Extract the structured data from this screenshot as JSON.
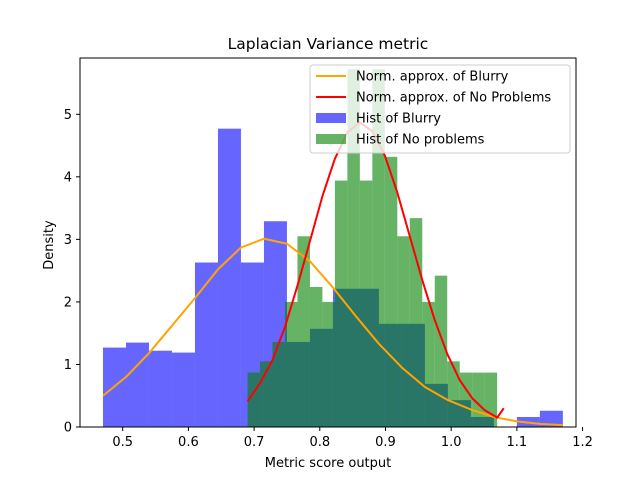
{
  "chart_data": {
    "type": "histogram",
    "title": "Laplacian Variance metric",
    "xlabel": "Metric score output",
    "ylabel": "Density",
    "xlim": [
      0.435,
      1.19
    ],
    "ylim": [
      0,
      5.9
    ],
    "xticks": [
      0.5,
      0.6,
      0.7,
      0.8,
      0.9,
      1.0,
      1.1,
      1.2
    ],
    "xtick_labels": [
      "0.5",
      "0.6",
      "0.7",
      "0.8",
      "0.9",
      "1.0",
      "1.1",
      "1.2"
    ],
    "yticks": [
      0,
      1,
      2,
      3,
      4,
      5
    ],
    "ytick_labels": [
      "0",
      "1",
      "2",
      "3",
      "4",
      "5"
    ],
    "grid": false,
    "legend_position": "upper-right",
    "colors": {
      "hist_blurry": "#0000ff",
      "hist_no_problems": "#008000",
      "hist_alpha": 0.6,
      "norm_blurry": "#ffa500",
      "norm_no_problems": "#ff0000"
    },
    "series": [
      {
        "name": "Hist of Blurry",
        "kind": "histogram",
        "bin_edges": [
          0.47,
          0.505,
          0.54,
          0.575,
          0.61,
          0.645,
          0.68,
          0.715,
          0.75,
          0.785,
          0.82,
          0.855,
          0.89,
          0.925,
          0.96,
          0.995,
          1.03,
          1.065,
          1.1,
          1.135,
          1.17
        ],
        "values": [
          1.27,
          1.35,
          1.22,
          1.19,
          2.63,
          4.77,
          2.63,
          3.29,
          1.36,
          1.57,
          2.21,
          2.21,
          1.65,
          1.65,
          0.69,
          0.43,
          0.16,
          0.0,
          0.16,
          0.26
        ]
      },
      {
        "name": "Hist of No problems",
        "kind": "histogram",
        "bin_edges": [
          0.69,
          0.709,
          0.728,
          0.747,
          0.766,
          0.785,
          0.804,
          0.823,
          0.842,
          0.861,
          0.88,
          0.899,
          0.918,
          0.937,
          0.956,
          0.975,
          0.994,
          1.013,
          1.032,
          1.051,
          1.07
        ],
        "values": [
          0.87,
          1.05,
          1.36,
          2.0,
          3.05,
          2.24,
          2.0,
          3.94,
          5.72,
          3.94,
          5.72,
          4.32,
          3.05,
          3.34,
          2.0,
          2.42,
          1.05,
          0.87,
          0.87,
          0.87
        ]
      },
      {
        "name": "Norm. approx. of Blurry",
        "kind": "line",
        "x": [
          0.47,
          0.505,
          0.54,
          0.575,
          0.61,
          0.645,
          0.68,
          0.715,
          0.75,
          0.785,
          0.82,
          0.855,
          0.89,
          0.925,
          0.96,
          0.995,
          1.03,
          1.065,
          1.1,
          1.135,
          1.17
        ],
        "y": [
          0.5,
          0.8,
          1.18,
          1.62,
          2.06,
          2.52,
          2.87,
          3.01,
          2.93,
          2.65,
          2.23,
          1.77,
          1.33,
          0.95,
          0.64,
          0.43,
          0.28,
          0.16,
          0.09,
          0.05,
          0.03
        ]
      },
      {
        "name": "Norm. approx. of No Problems",
        "kind": "line",
        "x": [
          0.69,
          0.709,
          0.728,
          0.747,
          0.766,
          0.785,
          0.804,
          0.823,
          0.842,
          0.861,
          0.88,
          0.899,
          0.918,
          0.937,
          0.956,
          0.975,
          0.994,
          1.013,
          1.032,
          1.051,
          1.07,
          1.08
        ],
        "y": [
          0.41,
          0.7,
          1.07,
          1.6,
          2.26,
          2.97,
          3.69,
          4.29,
          4.71,
          4.87,
          4.73,
          4.34,
          3.75,
          3.05,
          2.35,
          1.71,
          1.17,
          0.75,
          0.46,
          0.27,
          0.15,
          0.3
        ]
      }
    ]
  }
}
